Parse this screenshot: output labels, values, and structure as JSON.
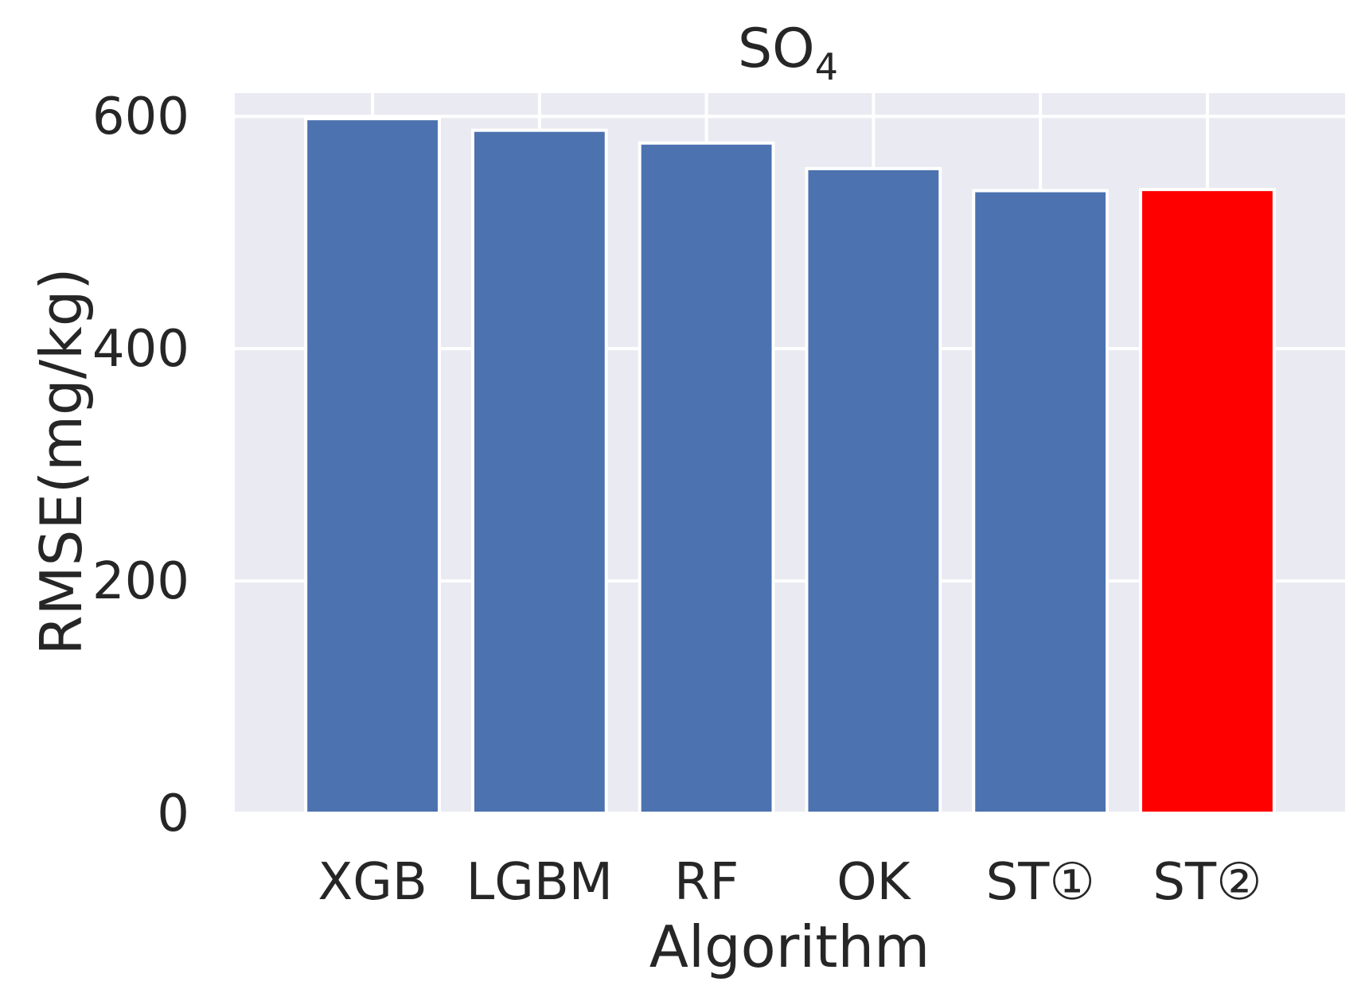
{
  "chart_data": {
    "type": "bar",
    "title": "SO",
    "title_subscript": "4",
    "xlabel": "Algorithm",
    "ylabel": "RMSE(mg/kg)",
    "categories": [
      "XGB",
      "LGBM",
      "RF",
      "OK",
      "ST①",
      "ST②"
    ],
    "values": [
      598,
      588,
      577,
      555,
      536,
      537
    ],
    "bar_colors": [
      "#4c72b0",
      "#4c72b0",
      "#4c72b0",
      "#4c72b0",
      "#4c72b0",
      "#ff0000"
    ],
    "ylim": [
      0,
      620
    ],
    "yticks": [
      0,
      200,
      400,
      600
    ],
    "background_color": "#eaeaf2",
    "grid": true
  }
}
